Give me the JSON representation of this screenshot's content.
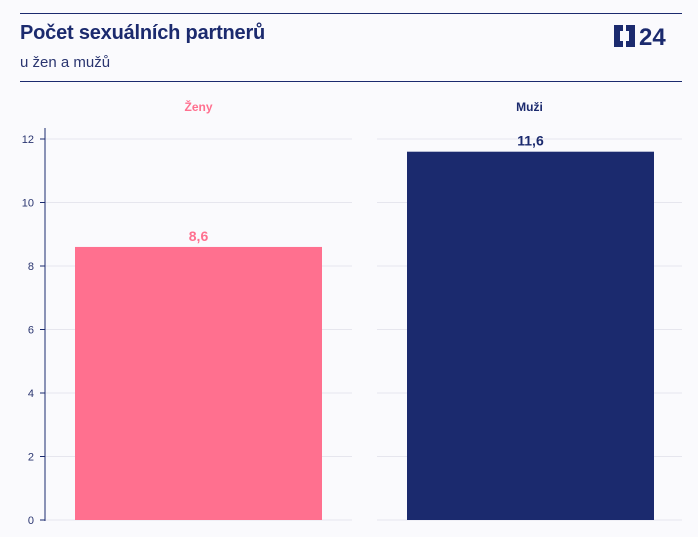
{
  "header": {
    "title": "Počet sexuálních partnerů",
    "subtitle": "u žen a mužů",
    "logo_text": "24"
  },
  "colors": {
    "zeny": "#ff708f",
    "muzi": "#1b2a6e",
    "text": "#1b2a6e",
    "grid": "#e6e6ee"
  },
  "chart_data": {
    "type": "bar",
    "title": "Počet sexuálních partnerů",
    "subtitle": "u žen a mužů",
    "categories": [
      "Ženy",
      "Muži"
    ],
    "values": [
      8.6,
      11.6
    ],
    "value_labels": [
      "8,6",
      "11,6"
    ],
    "ylim": [
      0,
      12.6
    ],
    "yticks": [
      0,
      2,
      4,
      6,
      8,
      10,
      12
    ],
    "ytick_labels": [
      "0",
      "2",
      "4",
      "6",
      "8",
      "10",
      "12"
    ],
    "grid": true,
    "facet_colors": [
      "#ff708f",
      "#1b2a6e"
    ]
  }
}
